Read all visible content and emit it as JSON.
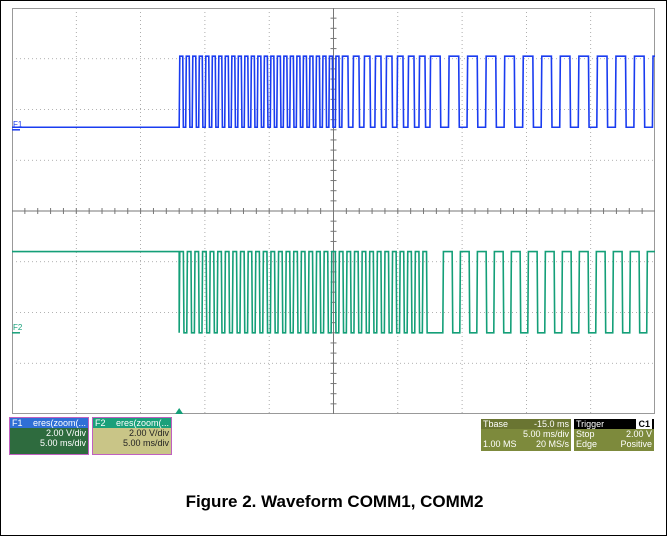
{
  "chart_data": {
    "type": "line",
    "title": "Figure 2. Waveform COMM1, COMM2",
    "x_divisions": 10,
    "y_divisions": 8,
    "trigger_position_div": 2.6,
    "series": [
      {
        "name": "F1",
        "color": "#1a3cf0",
        "zero_div": 5.6,
        "scale_label": "2.00 V/div",
        "low_level_div": 0.05,
        "high_level_div": 1.45,
        "idle_high_from_div": 9.96,
        "bursts": [
          {
            "start_div": 2.6,
            "end_div": 5.13,
            "pulses": 25
          },
          {
            "start_div": 5.13,
            "end_div": 6.5,
            "pulses": 8
          },
          {
            "start_div": 6.5,
            "end_div": 9.96,
            "pulses": 12
          }
        ]
      },
      {
        "name": "F2",
        "color": "#149f78",
        "zero_div": 1.6,
        "scale_label": "2.00 V/div",
        "low_level_div": 0.0,
        "high_level_div": 1.6,
        "idle_high_to_div": 2.6,
        "idle_high_from_div": 10.4,
        "bursts": [
          {
            "start_div": 2.6,
            "end_div": 6.5,
            "pulses": 33
          },
          {
            "start_div": 6.7,
            "end_div": 10.4,
            "pulses": 14
          }
        ]
      }
    ]
  },
  "panels": {
    "f1": {
      "header": "F1",
      "name": "eres(zoom(...",
      "scale": "2.00 V/div",
      "time": "5.00 ms/div"
    },
    "f2": {
      "header": "F2",
      "name": "eres(zoom(...",
      "scale": "2.00 V/div",
      "time": "5.00 ms/div"
    },
    "tbase": {
      "label": "Tbase",
      "value": "-15.0 ms",
      "time": "5.00 ms/div",
      "samples": "1.00 MS",
      "rate": "20 MS/s"
    },
    "trigger": {
      "label": "Trigger",
      "channel": "C1",
      "mode": "Stop",
      "level": "2.00 V",
      "type": "Edge",
      "slope": "Positive"
    }
  },
  "colors": {
    "grid": "#999999",
    "axis": "#999999",
    "trigger_marker": "#149f78"
  }
}
